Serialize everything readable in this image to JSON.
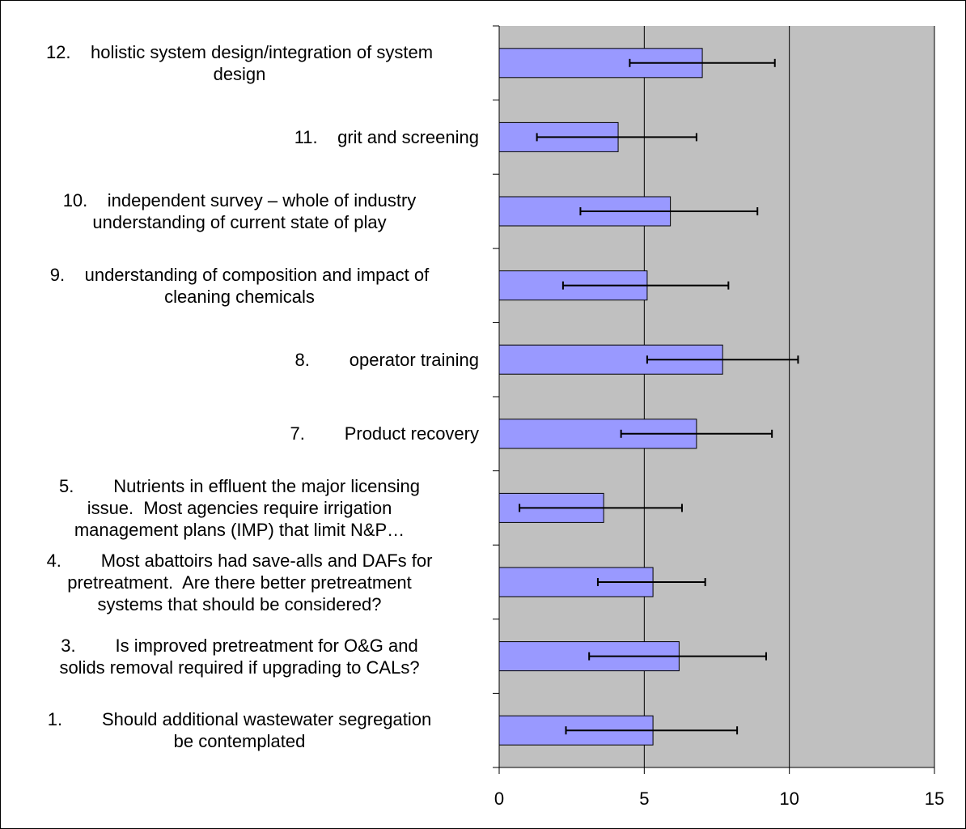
{
  "chart_data": {
    "type": "bar",
    "orientation": "horizontal",
    "title": "",
    "xlabel": "",
    "ylabel": "",
    "xlim": [
      0,
      15
    ],
    "x_ticks": [
      "0",
      "5",
      "10",
      "15"
    ],
    "grid": "vertical major gridlines",
    "legend": "none",
    "error_bars": true,
    "categories": [
      {
        "label_lines": [
          "12.    holistic system design/integration of system",
          "design"
        ],
        "align": "center"
      },
      {
        "label_lines": [
          "11.    grit and screening"
        ],
        "align": "right"
      },
      {
        "label_lines": [
          "10.    independent survey – whole of industry",
          "understanding of current state of play"
        ],
        "align": "center"
      },
      {
        "label_lines": [
          "9.    understanding of composition and impact of",
          "cleaning chemicals"
        ],
        "align": "center"
      },
      {
        "label_lines": [
          "8.        operator training"
        ],
        "align": "right"
      },
      {
        "label_lines": [
          "7.        Product recovery"
        ],
        "align": "right"
      },
      {
        "label_lines": [
          "5.        Nutrients in effluent the major licensing",
          "issue.  Most agencies require irrigation",
          "management plans (IMP) that limit N&P…"
        ],
        "align": "center"
      },
      {
        "label_lines": [
          "4.        Most abattoirs had save-alls and DAFs for",
          "pretreatment.  Are there better pretreatment",
          "systems that should be considered?"
        ],
        "align": "center"
      },
      {
        "label_lines": [
          "3.        Is improved pretreatment for O&G and",
          "solids removal required if upgrading to CALs?"
        ],
        "align": "center"
      },
      {
        "label_lines": [
          "1.        Should additional wastewater segregation",
          "be contemplated"
        ],
        "align": "center"
      }
    ],
    "values": [
      7.0,
      4.1,
      5.9,
      5.1,
      7.7,
      6.8,
      3.6,
      5.3,
      6.2,
      5.3
    ],
    "error_low": [
      4.5,
      1.3,
      2.8,
      2.2,
      5.1,
      4.2,
      0.7,
      3.4,
      3.1,
      2.3
    ],
    "error_high": [
      9.5,
      6.8,
      8.9,
      7.9,
      10.3,
      9.4,
      6.3,
      7.1,
      9.2,
      8.2
    ],
    "colors": {
      "bar_fill": "#9999ff",
      "bar_stroke": "#000000",
      "plot_bg": "#c0c0c0",
      "gridline": "#000000"
    }
  }
}
